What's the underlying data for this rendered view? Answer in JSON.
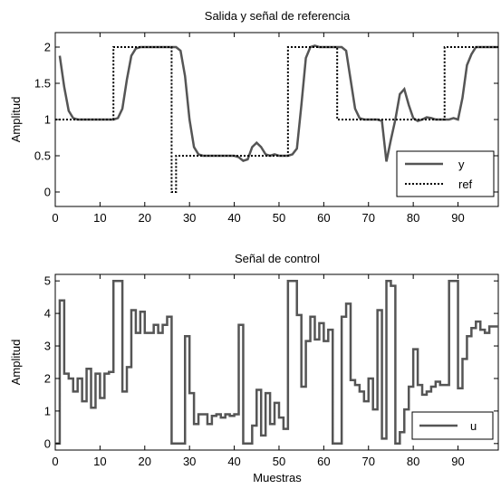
{
  "chart_data": [
    {
      "type": "line",
      "title": "Salida y señal de referencia",
      "xlabel": "",
      "ylabel": "Amplitud",
      "xlim": [
        0,
        99
      ],
      "ylim": [
        -0.2,
        2.2
      ],
      "xticks": [
        "0",
        "10",
        "20",
        "30",
        "40",
        "50",
        "60",
        "70",
        "80",
        "90"
      ],
      "yticks": [
        "0",
        "0.5",
        "1",
        "1.5",
        "2"
      ],
      "legend_position": "bottom-right",
      "series": [
        {
          "name": "y",
          "style": "solid",
          "color": "#555555",
          "x": [
            1,
            2,
            3,
            4,
            5,
            6,
            7,
            8,
            9,
            10,
            11,
            12,
            13,
            14,
            15,
            16,
            17,
            18,
            19,
            20,
            21,
            22,
            23,
            24,
            25,
            26,
            27,
            28,
            29,
            30,
            31,
            32,
            33,
            34,
            35,
            36,
            37,
            38,
            39,
            40,
            41,
            42,
            43,
            44,
            45,
            46,
            47,
            48,
            49,
            50,
            51,
            52,
            53,
            54,
            55,
            56,
            57,
            58,
            59,
            60,
            61,
            62,
            63,
            64,
            65,
            66,
            67,
            68,
            69,
            70,
            71,
            72,
            73,
            74,
            75,
            76,
            77,
            78,
            79,
            80,
            81,
            82,
            83,
            84,
            85,
            86,
            87,
            88,
            89,
            90,
            91,
            92,
            93,
            94,
            95,
            96,
            97,
            98,
            99
          ],
          "y": [
            1.88,
            1.45,
            1.12,
            1.02,
            1.0,
            1.0,
            1.0,
            1.0,
            1.0,
            1.0,
            1.0,
            1.0,
            1.0,
            1.02,
            1.15,
            1.55,
            1.88,
            1.98,
            2.0,
            2.0,
            2.0,
            2.0,
            2.0,
            2.0,
            2.0,
            2.0,
            2.0,
            1.95,
            1.6,
            1.0,
            0.62,
            0.52,
            0.5,
            0.5,
            0.5,
            0.5,
            0.5,
            0.5,
            0.5,
            0.5,
            0.48,
            0.43,
            0.45,
            0.62,
            0.68,
            0.62,
            0.52,
            0.5,
            0.52,
            0.5,
            0.5,
            0.5,
            0.52,
            0.6,
            1.2,
            1.85,
            2.0,
            2.02,
            2.0,
            2.0,
            2.0,
            2.0,
            2.0,
            2.0,
            1.95,
            1.55,
            1.15,
            1.02,
            1.0,
            1.0,
            1.0,
            1.0,
            0.98,
            0.42,
            0.72,
            1.0,
            1.35,
            1.42,
            1.2,
            1.02,
            0.98,
            1.0,
            1.03,
            1.02,
            1.0,
            1.0,
            1.0,
            1.0,
            1.02,
            1.0,
            1.3,
            1.75,
            1.9,
            2.0,
            2.0,
            2.0,
            2.0,
            2.0,
            2.0
          ]
        },
        {
          "name": "ref",
          "style": "dotted",
          "color": "#000000",
          "x": [
            0,
            13,
            13,
            26,
            26,
            27,
            27,
            52,
            52,
            63,
            63,
            87,
            87,
            99
          ],
          "y": [
            1,
            1,
            2,
            2,
            0,
            0,
            0.5,
            0.5,
            2,
            2,
            1,
            1,
            2,
            2
          ]
        }
      ]
    },
    {
      "type": "line",
      "title": "Señal de control",
      "xlabel": "Muestras",
      "ylabel": "Amplitud",
      "xlim": [
        0,
        99
      ],
      "ylim": [
        -0.2,
        5.2
      ],
      "xticks": [
        "0",
        "10",
        "20",
        "30",
        "40",
        "50",
        "60",
        "70",
        "80",
        "90"
      ],
      "yticks": [
        "0",
        "1",
        "2",
        "3",
        "4",
        "5"
      ],
      "legend_position": "bottom-right",
      "series": [
        {
          "name": "u",
          "style": "step",
          "color": "#555555",
          "x": [
            0,
            1,
            2,
            3,
            4,
            5,
            6,
            7,
            8,
            9,
            10,
            11,
            12,
            13,
            14,
            15,
            16,
            17,
            18,
            19,
            20,
            21,
            22,
            23,
            24,
            25,
            26,
            27,
            28,
            29,
            30,
            31,
            32,
            33,
            34,
            35,
            36,
            37,
            38,
            39,
            40,
            41,
            42,
            43,
            44,
            45,
            46,
            47,
            48,
            49,
            50,
            51,
            52,
            53,
            54,
            55,
            56,
            57,
            58,
            59,
            60,
            61,
            62,
            63,
            64,
            65,
            66,
            67,
            68,
            69,
            70,
            71,
            72,
            73,
            74,
            75,
            76,
            77,
            78,
            79,
            80,
            81,
            82,
            83,
            84,
            85,
            86,
            87,
            88,
            89,
            90,
            91,
            92,
            93,
            94,
            95,
            96,
            97,
            98
          ],
          "y": [
            0,
            4.4,
            2.15,
            2.0,
            1.6,
            2.0,
            1.3,
            2.3,
            1.1,
            2.15,
            1.4,
            2.15,
            2.2,
            5.0,
            5.0,
            1.6,
            2.35,
            4.1,
            3.4,
            4.05,
            3.4,
            3.4,
            3.65,
            3.4,
            3.65,
            3.9,
            0,
            0,
            0,
            3.3,
            1.55,
            0.6,
            0.9,
            0.9,
            0.6,
            0.85,
            0.9,
            0.8,
            0.9,
            0.85,
            0.9,
            3.65,
            0,
            0,
            0.55,
            1.65,
            0.25,
            1.55,
            0.6,
            1.25,
            0.8,
            0.45,
            5.0,
            5.0,
            3.95,
            1.75,
            3.15,
            3.9,
            3.2,
            3.7,
            3.15,
            3.5,
            0,
            0,
            3.9,
            4.3,
            1.95,
            1.8,
            1.6,
            1.3,
            2.0,
            1.05,
            4.1,
            0.15,
            5.0,
            4.85,
            0,
            0.35,
            1.05,
            1.75,
            2.9,
            1.8,
            1.5,
            1.6,
            1.75,
            1.9,
            1.8,
            1.8,
            5.0,
            5.0,
            1.7,
            2.6,
            3.3,
            3.55,
            3.75,
            3.5,
            3.4,
            3.6,
            3.6
          ]
        }
      ]
    }
  ]
}
